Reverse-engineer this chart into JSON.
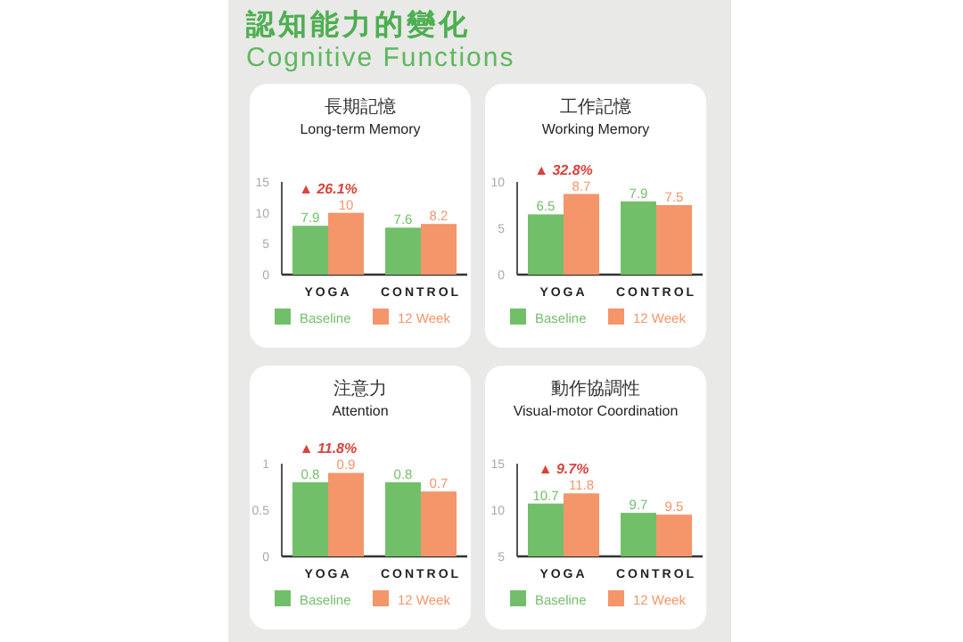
{
  "chart_data": [
    {
      "type": "other",
      "title": "認知能力的變化",
      "subtitle": "Cognitive Functions"
    },
    {
      "type": "bar",
      "title": "長期記憶",
      "subtitle": "Long-term Memory",
      "categories": [
        "YOGA",
        "CONTROL"
      ],
      "series": [
        {
          "name": "Baseline",
          "color": "#72bf6a",
          "values": [
            7.9,
            7.6
          ]
        },
        {
          "name": "12 Week",
          "color": "#f4956a",
          "values": [
            10,
            8.2
          ]
        }
      ],
      "ylim": [
        0,
        15
      ],
      "yticks": [
        0,
        5,
        10,
        15
      ],
      "data_labels": true,
      "legend": "bottom",
      "annotations": [
        {
          "text": "▲ 26.1%",
          "x": "YOGA",
          "y": 10
        }
      ]
    },
    {
      "type": "bar",
      "title": "工作記憶",
      "subtitle": "Working Memory",
      "categories": [
        "YOGA",
        "CONTROL"
      ],
      "series": [
        {
          "name": "Baseline",
          "color": "#72bf6a",
          "values": [
            6.5,
            7.9
          ]
        },
        {
          "name": "12 Week",
          "color": "#f4956a",
          "values": [
            8.7,
            7.5
          ]
        }
      ],
      "ylim": [
        0,
        10
      ],
      "yticks": [
        0,
        5,
        10
      ],
      "data_labels": true,
      "legend": "bottom",
      "annotations": [
        {
          "text": "▲ 32.8%",
          "x": "YOGA",
          "y": 8.7
        }
      ]
    },
    {
      "type": "bar",
      "title": "注意力",
      "subtitle": "Attention",
      "categories": [
        "YOGA",
        "CONTROL"
      ],
      "series": [
        {
          "name": "Baseline",
          "color": "#72bf6a",
          "values": [
            0.8,
            0.8
          ]
        },
        {
          "name": "12 Week",
          "color": "#f4956a",
          "values": [
            0.9,
            0.7
          ]
        }
      ],
      "ylim": [
        0,
        1
      ],
      "yticks": [
        0,
        0.5,
        1
      ],
      "data_labels": true,
      "legend": "bottom",
      "annotations": [
        {
          "text": "▲ 11.8%",
          "x": "YOGA",
          "y": 0.9
        }
      ]
    },
    {
      "type": "bar",
      "title": "動作協調性",
      "subtitle": "Visual-motor Coordination",
      "categories": [
        "YOGA",
        "CONTROL"
      ],
      "series": [
        {
          "name": "Baseline",
          "color": "#72bf6a",
          "values": [
            10.7,
            9.7
          ]
        },
        {
          "name": "12 Week",
          "color": "#f4956a",
          "values": [
            11.8,
            9.5
          ]
        }
      ],
      "ylim": [
        5,
        15
      ],
      "yticks": [
        5,
        10,
        15
      ],
      "data_labels": true,
      "legend": "bottom",
      "annotations": [
        {
          "text": "▲ 9.7%",
          "x": "YOGA",
          "y": 11.8
        }
      ]
    }
  ]
}
